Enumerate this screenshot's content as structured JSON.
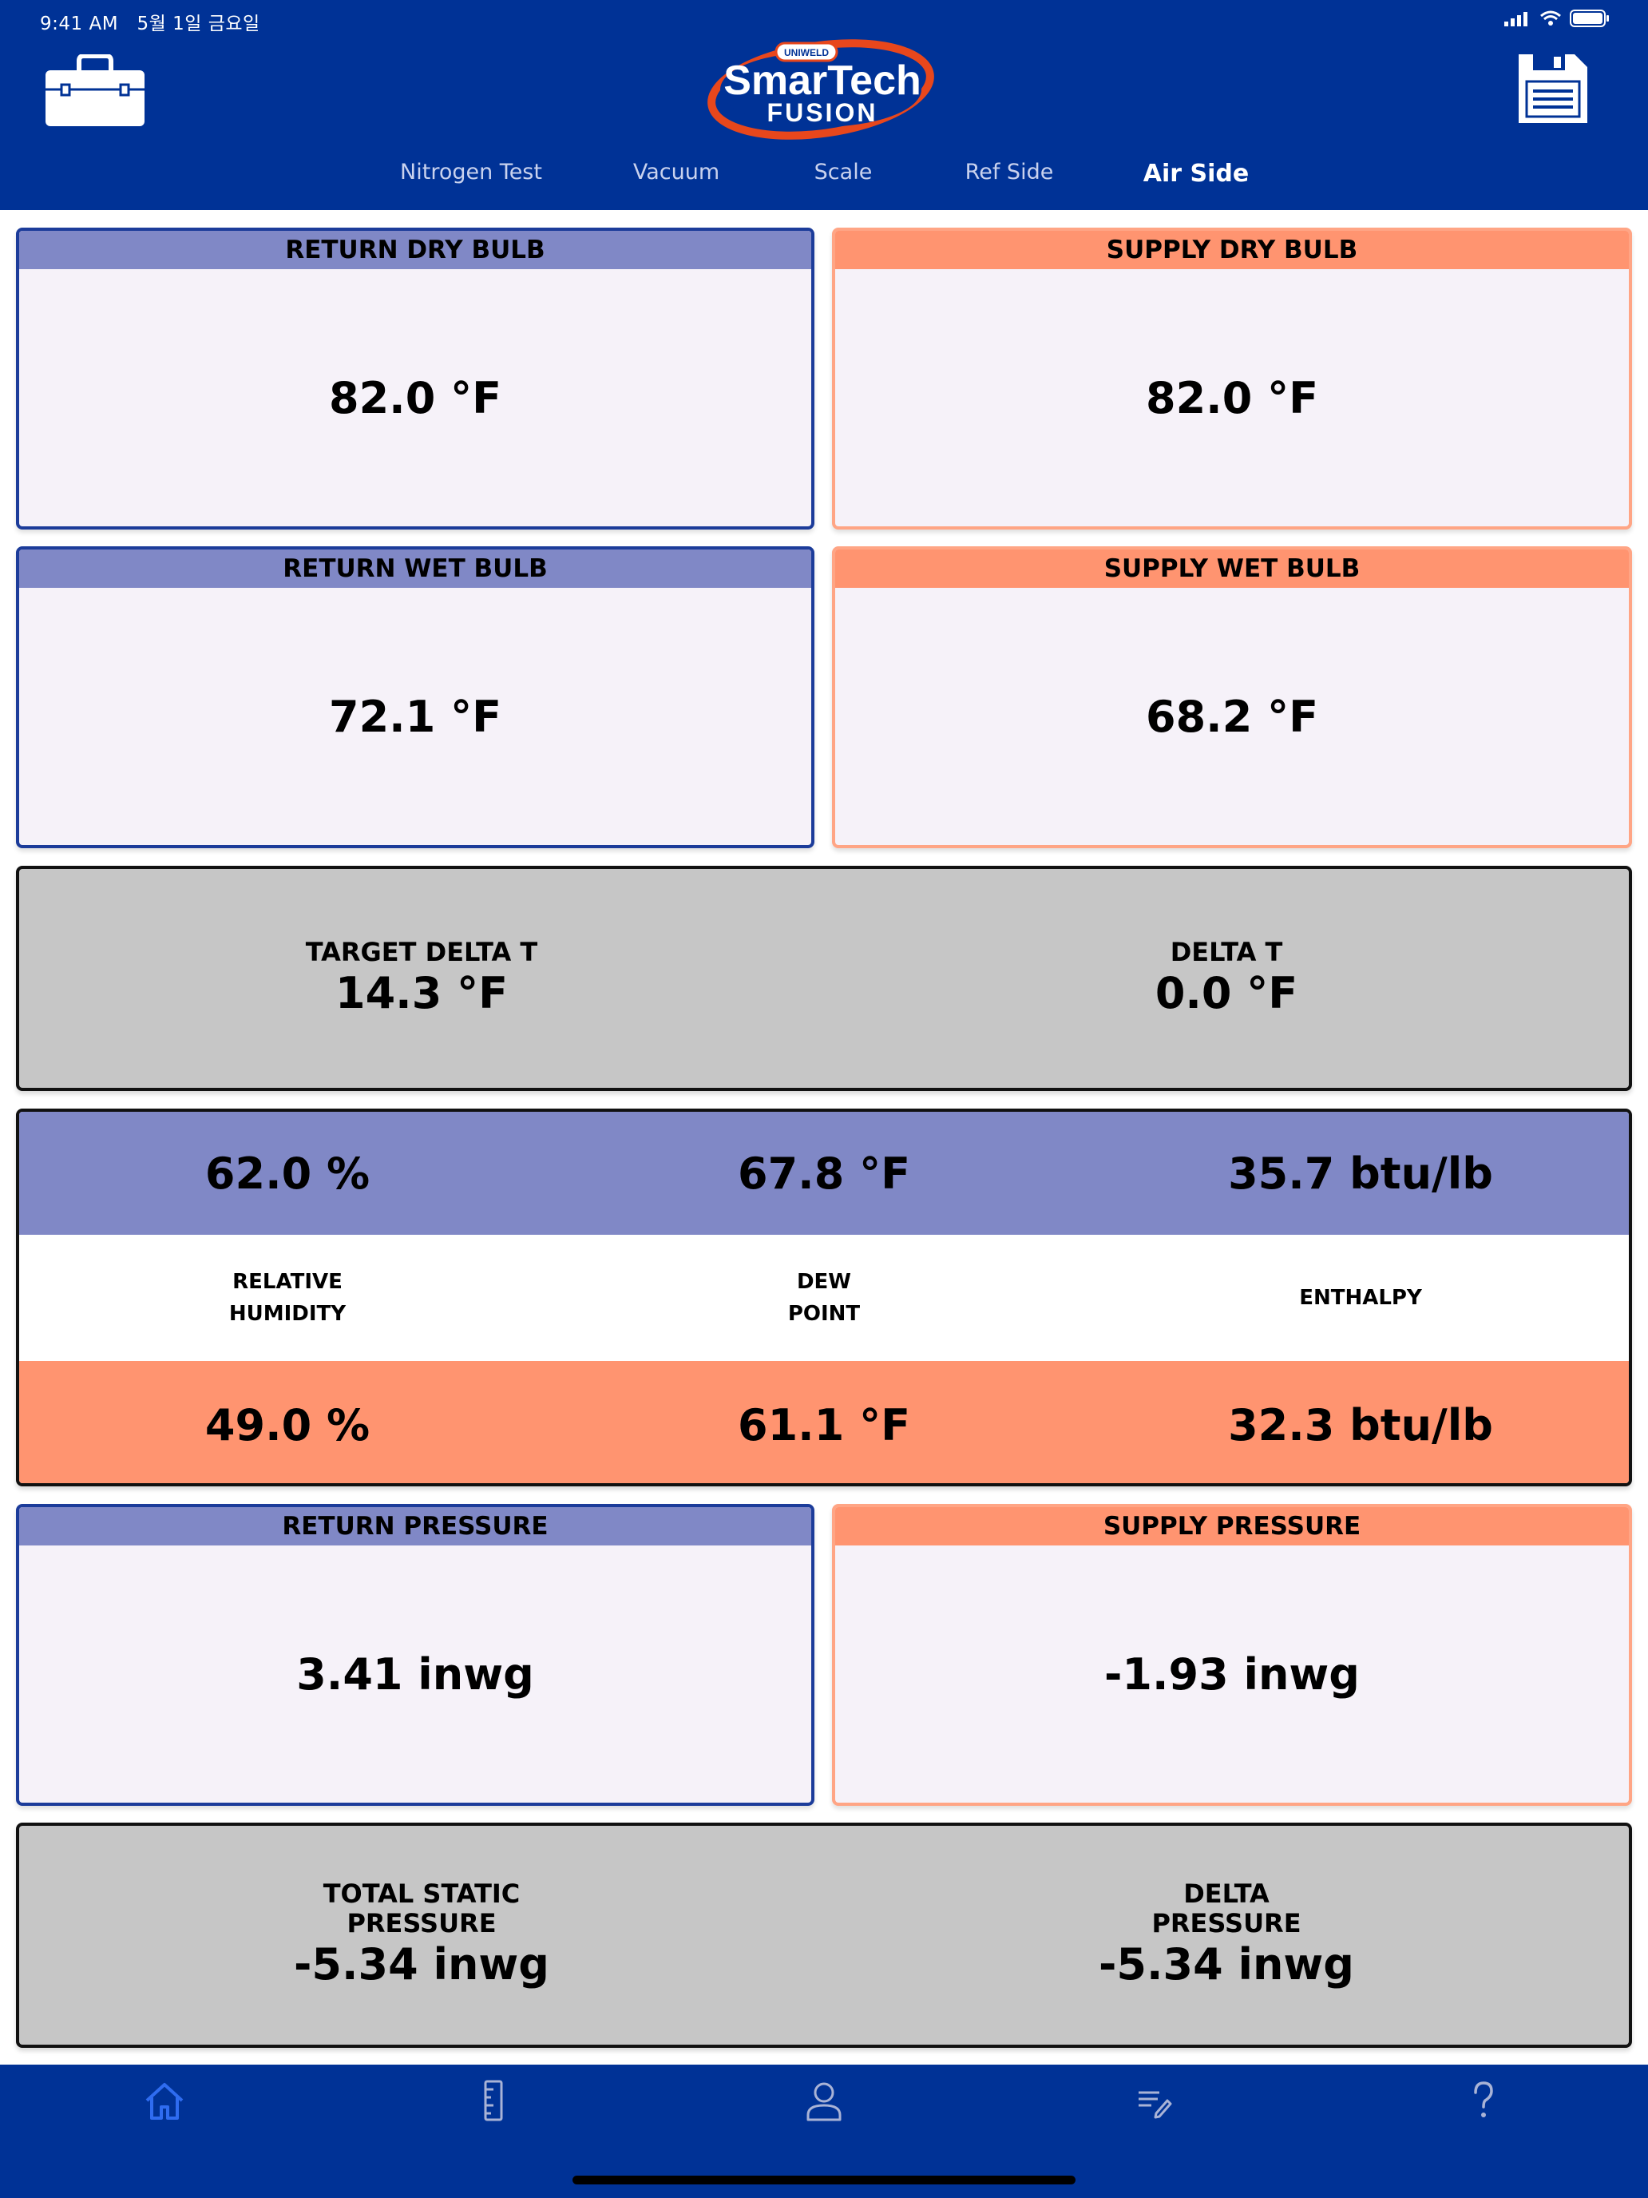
{
  "status_bar": {
    "time": "9:41 AM",
    "date": "5월 1일 금요일"
  },
  "logo": {
    "brand": "SmarTech",
    "sub": "FUSION",
    "badge": "UNIWELD"
  },
  "tabs": [
    {
      "label": "Nitrogen Test",
      "active": false
    },
    {
      "label": "Vacuum",
      "active": false
    },
    {
      "label": "Scale",
      "active": false
    },
    {
      "label": "Ref Side",
      "active": false
    },
    {
      "label": "Air Side",
      "active": true
    }
  ],
  "readings": {
    "return_dry_bulb": {
      "label": "RETURN DRY BULB",
      "value": "82.0 °F"
    },
    "supply_dry_bulb": {
      "label": "SUPPLY DRY BULB",
      "value": "82.0 °F"
    },
    "return_wet_bulb": {
      "label": "RETURN WET BULB",
      "value": "72.1 °F"
    },
    "supply_wet_bulb": {
      "label": "SUPPLY WET BULB",
      "value": "68.2 °F"
    },
    "return_pressure": {
      "label": "RETURN PRESSURE",
      "value": "3.41 inwg"
    },
    "supply_pressure": {
      "label": "SUPPLY PRESSURE",
      "value": "-1.93 inwg"
    }
  },
  "delta": {
    "target_label": "TARGET DELTA T",
    "target_value": "14.3 °F",
    "delta_label": "DELTA T",
    "delta_value": "0.0 °F"
  },
  "psychro": {
    "return_row": [
      "62.0 %",
      "67.8 °F",
      "35.7 btu/lb"
    ],
    "labels": [
      {
        "line1": "RELATIVE",
        "line2": "HUMIDITY"
      },
      {
        "line1": "DEW",
        "line2": "POINT"
      },
      {
        "line1": "ENTHALPY",
        "line2": ""
      }
    ],
    "supply_row": [
      "49.0 %",
      "61.1 °F",
      "32.3 btu/lb"
    ]
  },
  "pressure_summary": {
    "tsp_line1": "TOTAL STATIC",
    "tsp_line2": "PRESSURE",
    "tsp_value": "-5.34 inwg",
    "dp_line1": "DELTA",
    "dp_line2": "PRESSURE",
    "dp_value": "-5.34 inwg"
  },
  "bottom_nav": [
    "home-icon",
    "ruler-icon",
    "profile-icon",
    "edit-list-icon",
    "help-icon"
  ],
  "colors": {
    "header_blue": "#003296",
    "return_accent": "#8088c6",
    "supply_accent": "#ff9470",
    "card_bg": "#f6f2f9",
    "summary_gray": "#c6c6c6",
    "nav_active": "#2f6cf0",
    "nav_inactive": "#a9b3d6"
  }
}
